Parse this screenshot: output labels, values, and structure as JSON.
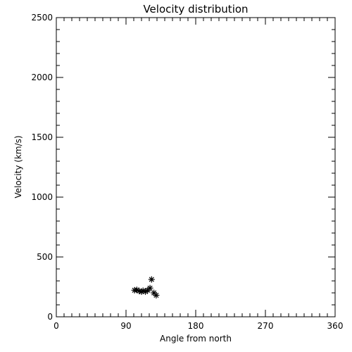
{
  "chart_data": {
    "type": "scatter",
    "title": "Velocity distribution",
    "xlabel": "Angle from north",
    "ylabel": "Velocity (km/s)",
    "xlim": [
      0,
      360
    ],
    "ylim": [
      0,
      2500
    ],
    "x_ticks": [
      0,
      90,
      180,
      270,
      360
    ],
    "y_ticks": [
      0,
      500,
      1000,
      1500,
      2000,
      2500
    ],
    "x_tick_labels": [
      "0",
      "90",
      "180",
      "270",
      "360"
    ],
    "y_tick_labels": [
      "0",
      "500",
      "1000",
      "1500",
      "2000",
      "2500"
    ],
    "x_minor_step": 10,
    "y_minor_step": 100,
    "grid": false,
    "marker": "asterisk",
    "color": "#000000",
    "points": [
      {
        "x": 101,
        "y": 222
      },
      {
        "x": 104,
        "y": 225
      },
      {
        "x": 107,
        "y": 215
      },
      {
        "x": 110,
        "y": 210
      },
      {
        "x": 112,
        "y": 218
      },
      {
        "x": 115,
        "y": 210
      },
      {
        "x": 118,
        "y": 222
      },
      {
        "x": 121,
        "y": 240
      },
      {
        "x": 123,
        "y": 312
      },
      {
        "x": 126,
        "y": 200
      },
      {
        "x": 129,
        "y": 180
      }
    ]
  }
}
